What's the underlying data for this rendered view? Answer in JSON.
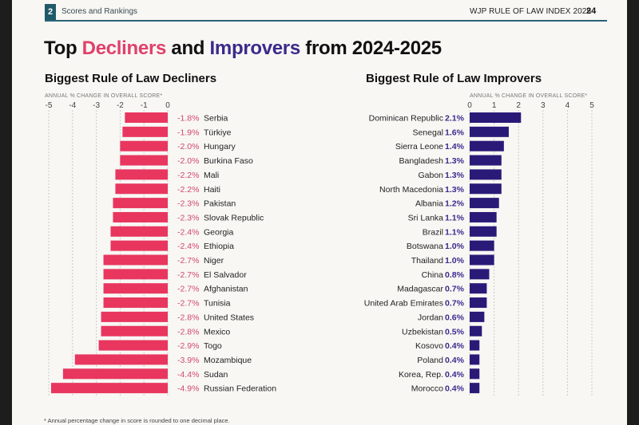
{
  "header": {
    "section_number": "2",
    "section_title": "Scores and Rankings",
    "report_title": "WJP RULE OF LAW INDEX 2025",
    "page_number": "24"
  },
  "title": {
    "prefix": "Top ",
    "decliners_word": "Decliners",
    "middle": " and ",
    "improvers_word": "Improvers",
    "suffix": " from 2024-2025"
  },
  "footnote": "* Annual percentage change in score is rounded to one decimal place.",
  "colors": {
    "decliner": "#e8365f",
    "decliner_label": "#d2476b",
    "improver": "#2a1a78",
    "improver_label": "#3b2a8c",
    "gridline": "#c9c9c9"
  },
  "chart_data": [
    {
      "type": "bar",
      "orientation": "horizontal",
      "title": "Biggest Rule of Law Decliners",
      "xlabel": "ANNUAL % CHANGE IN OVERALL SCORE*",
      "xlim": [
        -5,
        0
      ],
      "xticks": [
        "-5",
        "-4",
        "-3",
        "-2",
        "-1",
        "0"
      ],
      "grid": true,
      "categories": [
        "Serbia",
        "Türkiye",
        "Hungary",
        "Burkina Faso",
        "Mali",
        "Haiti",
        "Pakistan",
        "Slovak Republic",
        "Georgia",
        "Ethiopia",
        "Niger",
        "El Salvador",
        "Afghanistan",
        "Tunisia",
        "United States",
        "Mexico",
        "Togo",
        "Mozambique",
        "Sudan",
        "Russian Federation"
      ],
      "values": [
        -1.8,
        -1.9,
        -2.0,
        -2.0,
        -2.2,
        -2.2,
        -2.3,
        -2.3,
        -2.4,
        -2.4,
        -2.7,
        -2.7,
        -2.7,
        -2.7,
        -2.8,
        -2.8,
        -2.9,
        -3.9,
        -4.4,
        -4.9
      ],
      "value_labels": [
        "-1.8%",
        "-1.9%",
        "-2.0%",
        "-2.0%",
        "-2.2%",
        "-2.2%",
        "-2.3%",
        "-2.3%",
        "-2.4%",
        "-2.4%",
        "-2.7%",
        "-2.7%",
        "-2.7%",
        "-2.7%",
        "-2.8%",
        "-2.8%",
        "-2.9%",
        "-3.9%",
        "-4.4%",
        "-4.9%"
      ]
    },
    {
      "type": "bar",
      "orientation": "horizontal",
      "title": "Biggest Rule of Law Improvers",
      "xlabel": "ANNUAL % CHANGE IN OVERALL SCORE*",
      "xlim": [
        0,
        5
      ],
      "xticks": [
        "0",
        "1",
        "2",
        "3",
        "4",
        "5"
      ],
      "grid": true,
      "categories": [
        "Dominican Republic",
        "Senegal",
        "Sierra Leone",
        "Bangladesh",
        "Gabon",
        "North Macedonia",
        "Albania",
        "Sri Lanka",
        "Brazil",
        "Botswana",
        "Thailand",
        "China",
        "Madagascar",
        "United Arab Emirates",
        "Jordan",
        "Uzbekistan",
        "Kosovo",
        "Poland",
        "Korea, Rep.",
        "Morocco"
      ],
      "values": [
        2.1,
        1.6,
        1.4,
        1.3,
        1.3,
        1.3,
        1.2,
        1.1,
        1.1,
        1.0,
        1.0,
        0.8,
        0.7,
        0.7,
        0.6,
        0.5,
        0.4,
        0.4,
        0.4,
        0.4
      ],
      "value_labels": [
        "2.1%",
        "1.6%",
        "1.4%",
        "1.3%",
        "1.3%",
        "1.3%",
        "1.2%",
        "1.1%",
        "1.1%",
        "1.0%",
        "1.0%",
        "0.8%",
        "0.7%",
        "0.7%",
        "0.6%",
        "0.5%",
        "0.4%",
        "0.4%",
        "0.4%",
        "0.4%"
      ]
    }
  ]
}
